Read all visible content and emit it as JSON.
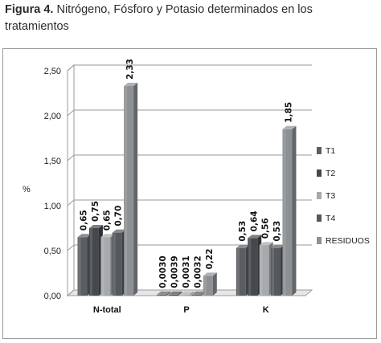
{
  "caption": {
    "prefix": "Figura 4.",
    "text": " Nitrógeno, Fósforo y Potasio determinados en los tratamientos"
  },
  "chart_data": {
    "type": "bar",
    "title": "",
    "xlabel": "",
    "ylabel": "%",
    "ylim": [
      0,
      2.5
    ],
    "yticks": [
      "0,00",
      "0,50",
      "1,00",
      "1,50",
      "2,00",
      "2,50"
    ],
    "categories": [
      "N-total",
      "P",
      "K"
    ],
    "series": [
      {
        "name": "T1",
        "values": [
          0.65,
          0.003,
          0.53
        ],
        "labels": [
          "0,65",
          "0,0030",
          "0,53"
        ],
        "color": "#5a5e63"
      },
      {
        "name": "T2",
        "values": [
          0.75,
          0.0039,
          0.64
        ],
        "labels": [
          "0,75",
          "0,0039",
          "0,64"
        ],
        "color": "#45484d"
      },
      {
        "name": "T3",
        "values": [
          0.65,
          0.0031,
          0.56
        ],
        "labels": [
          "0,65",
          "0,0031",
          "0,56"
        ],
        "color": "#a7aaad"
      },
      {
        "name": "T4",
        "values": [
          0.7,
          0.0032,
          0.53
        ],
        "labels": [
          "0,70",
          "0,0032",
          "0,53"
        ],
        "color": "#55585c"
      },
      {
        "name": "RESIDUOS",
        "values": [
          2.33,
          0.22,
          1.85
        ],
        "labels": [
          "2,33",
          "0,22",
          "1,85"
        ],
        "color": "#8d9094"
      }
    ],
    "grid": true,
    "legend": "right",
    "style": "3d"
  }
}
